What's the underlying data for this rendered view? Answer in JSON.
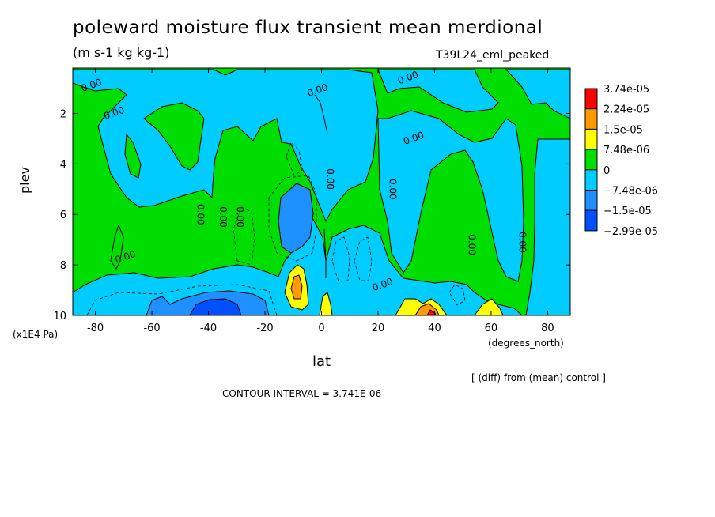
{
  "chart_data": {
    "type": "heatmap",
    "title": "poleward moisture flux transient mean merdional",
    "units": "(m s-1 kg kg-1)",
    "run_label": "T39L24_eml_peaked",
    "xlabel": "lat",
    "x_units": "(degrees_north)",
    "ylabel": "plev",
    "y_units": "(x1E4 Pa)",
    "xlim": [
      -88,
      88
    ],
    "ylim": [
      10,
      0.2
    ],
    "x_ticks": [
      "-80",
      "-60",
      "-40",
      "-20",
      "0",
      "20",
      "40",
      "60",
      "80"
    ],
    "x_tick_values": [
      -80,
      -60,
      -40,
      -20,
      0,
      20,
      40,
      60,
      80
    ],
    "y_ticks": [
      "2",
      "4",
      "6",
      "8",
      "10"
    ],
    "y_tick_values": [
      2,
      4,
      6,
      8,
      10
    ],
    "contour_label": "0.00",
    "contour_label_positions": [
      [
        -81,
        1.0
      ],
      [
        -73,
        2.1
      ],
      [
        -69,
        7.8
      ],
      [
        -44,
        6.0
      ],
      [
        -36,
        6.1
      ],
      [
        -30,
        6.1
      ],
      [
        -1,
        1.2
      ],
      [
        2,
        4.6
      ],
      [
        22,
        8.9
      ],
      [
        24,
        5.0
      ],
      [
        33,
        3.1
      ],
      [
        52,
        7.2
      ],
      [
        70,
        7.1
      ],
      [
        31,
        0.7
      ]
    ],
    "colorbar": {
      "levels": [
        "3.74e-05",
        "2.24e-05",
        "1.5e-05",
        "7.48e-06",
        "0",
        "−7.48e-06",
        "−1.5e-05",
        "−2.99e-05"
      ],
      "colors": [
        "#ff0000",
        "#ff9900",
        "#ffff00",
        "#00dd00",
        "#00ccff",
        "#1e90ff",
        "#0050ff"
      ],
      "top_color": "#ff0000"
    },
    "contour_interval_text": "CONTOUR INTERVAL = 3.741E-06",
    "diff_note": "[ (diff) from (mean) control ]"
  }
}
